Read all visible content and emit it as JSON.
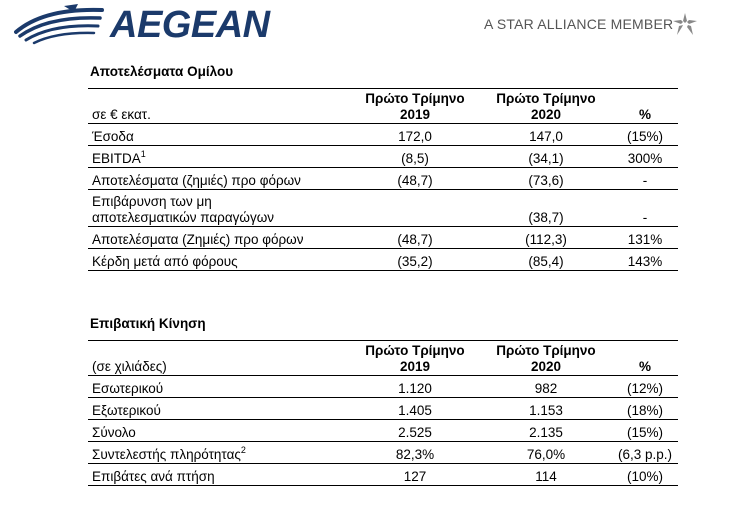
{
  "header": {
    "brand": "AEGEAN",
    "alliance": "A STAR ALLIANCE MEMBER"
  },
  "table1": {
    "title": "Αποτελέσματα Ομίλου",
    "unit": "σε € εκατ.",
    "col1": [
      "Πρώτο Τρίμηνο",
      "2019"
    ],
    "col2": [
      "Πρώτο Τρίμηνο",
      "2020"
    ],
    "col3": "%",
    "rows": [
      {
        "label": "Έσοδα",
        "v1": "172,0",
        "v2": "147,0",
        "pct": "(15%)"
      },
      {
        "label": "EBITDA",
        "sup": "1",
        "v1": "(8,5)",
        "v2": "(34,1)",
        "pct": "300%"
      },
      {
        "label": "Αποτελέσματα (ζημιές) προ φόρων",
        "v1": "(48,7)",
        "v2": "(73,6)",
        "pct": "-"
      },
      {
        "label": "Επιβάρυνση των μη",
        "label2": "αποτελεσματικών παραγώγων",
        "v1": "",
        "v2": "(38,7)",
        "pct": "-"
      },
      {
        "label": "Αποτελέσματα (Ζημιές) προ φόρων",
        "v1": "(48,7)",
        "v2": "(112,3)",
        "pct": "131%"
      },
      {
        "label": "Κέρδη μετά από φόρους",
        "v1": "(35,2)",
        "v2": "(85,4)",
        "pct": "143%"
      }
    ]
  },
  "table2": {
    "title": "Επιβατική Κίνηση",
    "unit": "(σε χιλιάδες)",
    "col1": [
      "Πρώτο Τρίμηνο",
      "2019"
    ],
    "col2": [
      "Πρώτο Τρίμηνο",
      "2020"
    ],
    "col3": "%",
    "rows": [
      {
        "label": "Εσωτερικού",
        "v1": "1.120",
        "v2": "982",
        "pct": "(12%)"
      },
      {
        "label": "Εξωτερικού",
        "v1": "1.405",
        "v2": "1.153",
        "pct": "(18%)"
      },
      {
        "label": "Σύνολο",
        "v1": "2.525",
        "v2": "2.135",
        "pct": "(15%)"
      },
      {
        "label": "Συντελεστής πληρότητας",
        "sup": "2",
        "v1": "82,3%",
        "v2": "76,0%",
        "pct": "(6,3 p.p.)"
      },
      {
        "label": "Επιβάτες ανά πτήση",
        "v1": "127",
        "v2": "114",
        "pct": "(10%)"
      }
    ]
  },
  "icons": [
    "aegean-bird-logo-icon",
    "star-alliance-icon"
  ],
  "colors": {
    "brand": "#1b3a6b",
    "alliance_text": "#555555"
  }
}
